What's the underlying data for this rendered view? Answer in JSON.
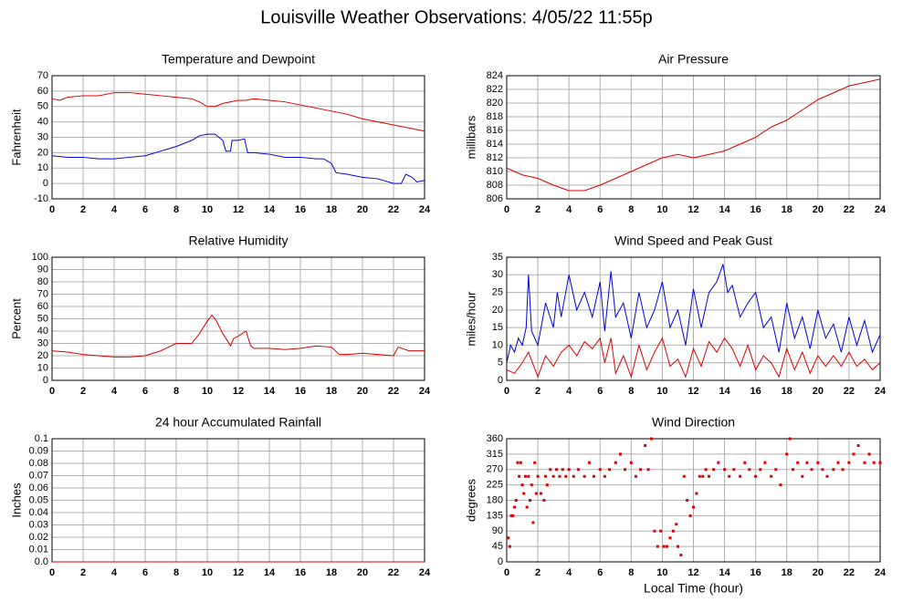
{
  "title": "Louisville Weather Observations: 4/05/22 11:55p",
  "chart_data": [
    {
      "type": "line",
      "title": "Temperature and Dewpoint",
      "ylabel": "Fahrenheit",
      "xlim": [
        0,
        24
      ],
      "xticks": [
        0,
        2,
        4,
        6,
        8,
        10,
        12,
        14,
        16,
        18,
        20,
        22,
        24
      ],
      "ylim": [
        -10,
        70
      ],
      "yticks": [
        -10,
        0,
        10,
        20,
        30,
        40,
        50,
        60,
        70
      ],
      "grid": true,
      "series": [
        {
          "color": "#e00000",
          "x": [
            0,
            0.5,
            1,
            2,
            3,
            4,
            5,
            6,
            7,
            8,
            9,
            9.5,
            10,
            10.5,
            11,
            12,
            12.5,
            13,
            14,
            15,
            16,
            17,
            18,
            19,
            20,
            21,
            22,
            23,
            24
          ],
          "values": [
            55,
            54,
            56,
            57,
            57,
            59,
            59,
            58,
            57,
            56,
            55,
            53,
            50,
            50,
            52,
            54,
            54,
            55,
            54,
            53,
            51,
            49,
            47,
            45,
            42,
            40,
            38,
            36,
            34
          ]
        },
        {
          "color": "#0000e0",
          "x": [
            0,
            1,
            2,
            3,
            4,
            5,
            6,
            7,
            8,
            9,
            9.5,
            10,
            10.5,
            11,
            11.2,
            11.5,
            11.6,
            12,
            12.4,
            12.6,
            13,
            14,
            15,
            16,
            17,
            17.5,
            18,
            18.3,
            19,
            20,
            21,
            22,
            22.5,
            22.8,
            23.2,
            23.5,
            24
          ],
          "values": [
            18,
            17,
            17,
            16,
            16,
            17,
            18,
            21,
            24,
            28,
            31,
            32,
            32,
            28,
            21,
            21,
            28,
            28,
            29,
            20,
            20,
            19,
            17,
            17,
            16,
            16,
            13,
            7,
            6,
            4,
            3,
            0,
            0,
            6,
            4,
            1,
            2
          ]
        }
      ]
    },
    {
      "type": "line",
      "title": "Air Pressure",
      "ylabel": "millibars",
      "xlim": [
        0,
        24
      ],
      "xticks": [
        0,
        2,
        4,
        6,
        8,
        10,
        12,
        14,
        16,
        18,
        20,
        22,
        24
      ],
      "ylim": [
        806,
        824
      ],
      "yticks": [
        806,
        808,
        810,
        812,
        814,
        816,
        818,
        820,
        822,
        824
      ],
      "grid": true,
      "series": [
        {
          "color": "#e00000",
          "x": [
            0,
            0.5,
            1,
            2,
            3,
            4,
            5,
            6,
            7,
            8,
            9,
            10,
            11,
            12,
            13,
            14,
            15,
            16,
            17,
            18,
            19,
            20,
            21,
            22,
            23,
            24
          ],
          "values": [
            810.5,
            810,
            809.5,
            809,
            808,
            807.2,
            807.2,
            808,
            809,
            810,
            811,
            812,
            812.5,
            812,
            812.5,
            813,
            814,
            815,
            816.5,
            817.5,
            819,
            820.5,
            821.5,
            822.5,
            823,
            823.5
          ]
        }
      ]
    },
    {
      "type": "line",
      "title": "Relative Humidity",
      "ylabel": "Percent",
      "xlim": [
        0,
        24
      ],
      "xticks": [
        0,
        2,
        4,
        6,
        8,
        10,
        12,
        14,
        16,
        18,
        20,
        22,
        24
      ],
      "ylim": [
        0,
        100
      ],
      "yticks": [
        0,
        10,
        20,
        30,
        40,
        50,
        60,
        70,
        80,
        90,
        100
      ],
      "grid": true,
      "series": [
        {
          "color": "#e00000",
          "x": [
            0,
            1,
            2,
            3,
            4,
            5,
            6,
            7,
            8,
            9,
            9.5,
            10,
            10.3,
            10.6,
            11,
            11.5,
            11.7,
            12,
            12.5,
            12.8,
            13,
            14,
            15,
            16,
            17,
            18,
            18.5,
            19,
            20,
            21,
            22,
            22.3,
            23,
            24
          ],
          "values": [
            24,
            23,
            21,
            20,
            19,
            19,
            20,
            24,
            30,
            30,
            38,
            48,
            53,
            48,
            38,
            28,
            34,
            36,
            40,
            28,
            26,
            26,
            25,
            26,
            28,
            27,
            21,
            21,
            22,
            21,
            20,
            27,
            24,
            24
          ]
        }
      ]
    },
    {
      "type": "line",
      "title": "Wind Speed and Peak Gust",
      "ylabel": "miles/hour",
      "xlim": [
        0,
        24
      ],
      "xticks": [
        0,
        2,
        4,
        6,
        8,
        10,
        12,
        14,
        16,
        18,
        20,
        22,
        24
      ],
      "ylim": [
        0,
        35
      ],
      "yticks": [
        0,
        5,
        10,
        15,
        20,
        25,
        30,
        35
      ],
      "grid": true,
      "series": [
        {
          "color": "#0000e0",
          "x": [
            0,
            0.25,
            0.5,
            0.75,
            1,
            1.25,
            1.4,
            1.6,
            2,
            2.5,
            3,
            3.25,
            3.5,
            4,
            4.5,
            5,
            5.5,
            6,
            6.3,
            6.7,
            7,
            7.5,
            8,
            8.5,
            9,
            9.5,
            10,
            10.5,
            11,
            11.5,
            12,
            12.5,
            13,
            13.5,
            13.9,
            14.2,
            14.5,
            15,
            15.5,
            16,
            16.5,
            17,
            17.5,
            18,
            18.5,
            19,
            19.5,
            20,
            20.5,
            21,
            21.5,
            22,
            22.5,
            23,
            23.5,
            24
          ],
          "values": [
            5,
            10,
            8,
            12,
            10,
            15,
            30,
            14,
            10,
            22,
            15,
            25,
            18,
            30,
            20,
            25,
            18,
            28,
            14,
            31,
            18,
            22,
            12,
            25,
            15,
            20,
            28,
            15,
            20,
            10,
            26,
            15,
            25,
            28,
            33,
            25,
            27,
            18,
            22,
            25,
            15,
            18,
            8,
            22,
            12,
            18,
            9,
            20,
            12,
            16,
            8,
            18,
            10,
            17,
            8,
            13
          ]
        },
        {
          "color": "#e00000",
          "x": [
            0,
            0.5,
            1,
            1.4,
            2,
            2.5,
            3,
            3.5,
            4,
            4.5,
            5,
            5.5,
            6,
            6.3,
            6.7,
            7,
            7.5,
            8,
            8.5,
            9,
            9.5,
            10,
            10.5,
            11,
            11.5,
            12,
            12.5,
            13,
            13.5,
            14,
            14.5,
            15,
            15.5,
            16,
            16.5,
            17,
            17.5,
            18,
            18.5,
            19,
            19.5,
            20,
            20.5,
            21,
            21.5,
            22,
            22.5,
            23,
            23.5,
            24
          ],
          "values": [
            3,
            2,
            5,
            8,
            1,
            7,
            4,
            8,
            10,
            7,
            11,
            9,
            12,
            5,
            12,
            2,
            7,
            1,
            10,
            3,
            8,
            12,
            4,
            6,
            1,
            9,
            4,
            11,
            8,
            12,
            9,
            4,
            10,
            3,
            7,
            5,
            1,
            9,
            3,
            8,
            2,
            7,
            4,
            7,
            4,
            8,
            4,
            6,
            3,
            5
          ]
        }
      ]
    },
    {
      "type": "line",
      "title": "24 hour Accumulated Rainfall",
      "ylabel": "Inches",
      "xlim": [
        0,
        24
      ],
      "xticks": [
        0,
        2,
        4,
        6,
        8,
        10,
        12,
        14,
        16,
        18,
        20,
        22,
        24
      ],
      "ylim": [
        0,
        0.1
      ],
      "yticks": [
        {
          "value": 0,
          "label": "0.0"
        },
        0.01,
        0.02,
        0.03,
        0.04,
        0.05,
        0.06,
        0.07,
        0.08,
        0.09,
        0.1
      ],
      "grid": true,
      "series": [
        {
          "color": "#e00000",
          "x": [
            0,
            24
          ],
          "values": [
            0,
            0
          ]
        }
      ]
    },
    {
      "type": "scatter",
      "title": "Wind Direction",
      "ylabel": "degrees",
      "xlabel": "Local Time (hour)",
      "xlim": [
        0,
        24
      ],
      "xticks": [
        0,
        2,
        4,
        6,
        8,
        10,
        12,
        14,
        16,
        18,
        20,
        22,
        24
      ],
      "ylim": [
        0,
        360
      ],
      "yticks": [
        0,
        45,
        90,
        135,
        180,
        225,
        270,
        315,
        360
      ],
      "grid": true,
      "series": [
        {
          "color": "#e00000",
          "x": [
            0.1,
            0.2,
            0.3,
            0.4,
            0.5,
            0.6,
            0.7,
            0.8,
            0.9,
            1.0,
            1.1,
            1.2,
            1.3,
            1.4,
            1.5,
            1.6,
            1.7,
            1.8,
            1.9,
            2.0,
            2.2,
            2.4,
            2.5,
            2.6,
            2.8,
            3.0,
            3.2,
            3.4,
            3.6,
            3.8,
            4.0,
            4.3,
            4.6,
            5.0,
            5.3,
            5.6,
            6.0,
            6.3,
            6.6,
            7.0,
            7.3,
            7.6,
            8.0,
            8.3,
            8.6,
            8.9,
            9.1,
            9.3,
            9.5,
            9.7,
            9.9,
            10.1,
            10.3,
            10.5,
            10.7,
            10.9,
            11.0,
            11.2,
            11.4,
            11.6,
            11.8,
            12.0,
            12.2,
            12.4,
            12.6,
            12.8,
            13.0,
            13.3,
            13.6,
            14.0,
            14.3,
            14.6,
            15.0,
            15.3,
            15.6,
            16.0,
            16.3,
            16.6,
            17.0,
            17.3,
            17.6,
            18.0,
            18.2,
            18.4,
            18.7,
            19.0,
            19.3,
            19.6,
            20.0,
            20.3,
            20.6,
            21.0,
            21.3,
            21.6,
            22.0,
            22.3,
            22.6,
            23.0,
            23.3,
            23.6,
            24.0
          ],
          "values": [
            70,
            45,
            135,
            135,
            160,
            180,
            290,
            250,
            290,
            225,
            200,
            250,
            160,
            250,
            180,
            225,
            115,
            290,
            200,
            250,
            200,
            180,
            250,
            225,
            270,
            250,
            270,
            250,
            270,
            250,
            270,
            250,
            270,
            250,
            290,
            250,
            270,
            250,
            270,
            290,
            315,
            270,
            290,
            250,
            270,
            340,
            270,
            360,
            90,
            45,
            90,
            45,
            45,
            70,
            90,
            110,
            45,
            20,
            250,
            180,
            135,
            160,
            200,
            250,
            250,
            270,
            250,
            270,
            290,
            270,
            250,
            270,
            250,
            290,
            270,
            250,
            270,
            290,
            250,
            270,
            225,
            315,
            360,
            270,
            290,
            250,
            290,
            270,
            290,
            270,
            250,
            270,
            290,
            270,
            290,
            315,
            340,
            290,
            315,
            290,
            290
          ]
        }
      ]
    }
  ]
}
